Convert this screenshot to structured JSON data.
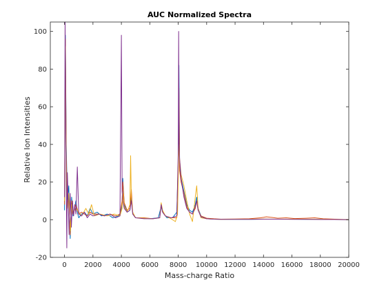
{
  "chart_data": {
    "type": "line",
    "title": "AUC Normalized Spectra",
    "xlabel": "Mass-charge Ratio",
    "ylabel": "Relative Ion Intensities",
    "xlim": [
      -1000,
      20000
    ],
    "ylim": [
      -20,
      105
    ],
    "xticks": [
      0,
      2000,
      4000,
      6000,
      8000,
      10000,
      12000,
      14000,
      16000,
      18000,
      20000
    ],
    "yticks": [
      -20,
      0,
      20,
      40,
      60,
      80,
      100
    ],
    "grid": false,
    "legend": "none",
    "series": [
      {
        "color": "#0072BD",
        "x": [
          0,
          60,
          120,
          200,
          300,
          400,
          500,
          600,
          800,
          900,
          1000,
          1200,
          1400,
          1600,
          1800,
          2000,
          2300,
          2600,
          3000,
          3400,
          3800,
          3950,
          4050,
          4100,
          4200,
          4400,
          4600,
          4700,
          4800,
          5000,
          5400,
          6000,
          6600,
          6800,
          6900,
          7000,
          7200,
          7600,
          7900,
          8000,
          8050,
          8100,
          8200,
          8400,
          8600,
          8800,
          9000,
          9200,
          9300,
          9400,
          9600,
          10000,
          10500,
          11000,
          12000,
          13000,
          14000,
          15000,
          16000,
          17000,
          18000,
          19000,
          20000
        ],
        "y": [
          5,
          98,
          40,
          10,
          18,
          -10,
          12,
          2,
          10,
          4,
          1,
          3,
          4,
          2,
          6,
          3,
          4,
          2,
          3,
          1,
          2,
          4,
          8,
          22,
          8,
          4,
          5,
          12,
          3,
          1,
          1,
          0.5,
          1,
          7,
          4,
          3,
          1,
          1,
          4,
          30,
          82,
          28,
          22,
          15,
          8,
          5,
          4,
          8,
          12,
          6,
          2,
          0.5,
          0.3,
          0.2,
          0.2,
          0.2,
          0.3,
          0.3,
          0.3,
          0.2,
          0.2,
          0.1,
          0
        ]
      },
      {
        "color": "#D95319",
        "x": [
          0,
          60,
          120,
          200,
          300,
          400,
          500,
          600,
          800,
          1000,
          1200,
          1400,
          1600,
          1800,
          2000,
          2400,
          2800,
          3200,
          3600,
          3900,
          4050,
          4100,
          4200,
          4400,
          4600,
          4700,
          4800,
          5000,
          5600,
          6200,
          6700,
          6800,
          6900,
          7100,
          7500,
          7900,
          8000,
          8050,
          8100,
          8200,
          8400,
          8600,
          8800,
          9000,
          9200,
          9300,
          9400,
          9600,
          10000,
          10500,
          11000,
          12000,
          13000,
          13800,
          14200,
          14600,
          15000,
          15600,
          16200,
          17000,
          17600,
          18200,
          19000,
          20000
        ],
        "y": [
          8,
          96,
          35,
          8,
          12,
          -8,
          10,
          3,
          8,
          3,
          4,
          3,
          2,
          4,
          3,
          3,
          2,
          3,
          2,
          3,
          10,
          20,
          9,
          5,
          6,
          16,
          3,
          1,
          1,
          0.5,
          1,
          8,
          4,
          2,
          1,
          1,
          25,
          70,
          26,
          20,
          14,
          7,
          4,
          3,
          6,
          10,
          5,
          2,
          0.8,
          0.5,
          0.3,
          0.4,
          0.5,
          1,
          1.5,
          1.2,
          0.8,
          1,
          0.6,
          0.8,
          1,
          0.5,
          0.3,
          0
        ]
      },
      {
        "color": "#EDB120",
        "x": [
          0,
          60,
          120,
          200,
          300,
          400,
          500,
          600,
          800,
          1000,
          1200,
          1500,
          1700,
          1900,
          2100,
          2500,
          3000,
          3500,
          3900,
          4050,
          4100,
          4200,
          4400,
          4600,
          4650,
          4700,
          4800,
          5000,
          5600,
          6200,
          6700,
          6800,
          6900,
          7100,
          7500,
          7800,
          7950,
          8050,
          8100,
          8200,
          8400,
          8600,
          8800,
          9000,
          9200,
          9300,
          9400,
          9600,
          10000,
          10500,
          11000,
          12000,
          13000,
          14000,
          15000,
          16000,
          17000,
          18000,
          19000,
          20000
        ],
        "y": [
          10,
          92,
          30,
          6,
          14,
          -6,
          8,
          4,
          6,
          4,
          2,
          6,
          3,
          8,
          2,
          3,
          2,
          3,
          2,
          6,
          14,
          7,
          4,
          8,
          34,
          12,
          4,
          1,
          0.8,
          0.5,
          1,
          9,
          5,
          2,
          0.5,
          -1,
          3,
          40,
          32,
          24,
          18,
          10,
          3,
          -1,
          12,
          18,
          6,
          1,
          0.5,
          0.3,
          0.2,
          0.3,
          0.3,
          0.4,
          0.3,
          0.3,
          0.3,
          0.2,
          0.1,
          0
        ]
      },
      {
        "color": "#7E2F8E",
        "x": [
          0,
          40,
          80,
          120,
          160,
          200,
          260,
          320,
          400,
          480,
          560,
          640,
          720,
          800,
          900,
          1000,
          1200,
          1400,
          1600,
          1800,
          2000,
          2400,
          2800,
          3200,
          3600,
          3900,
          4000,
          4050,
          4100,
          4200,
          4400,
          4600,
          4700,
          4800,
          5000,
          5600,
          6200,
          6700,
          6800,
          6900,
          7100,
          7500,
          7900,
          8000,
          8030,
          8060,
          8100,
          8200,
          8400,
          8600,
          8800,
          9000,
          9200,
          9300,
          9400,
          9600,
          10000,
          10500,
          11000,
          12000,
          13000,
          14000,
          15000,
          16000,
          17000,
          18000,
          19000,
          20000
        ],
        "y": [
          12,
          105,
          60,
          20,
          -15,
          25,
          10,
          -8,
          14,
          -4,
          10,
          2,
          8,
          3,
          28,
          3,
          2,
          4,
          1,
          3,
          2,
          3,
          2,
          3,
          1,
          2,
          98,
          15,
          10,
          6,
          4,
          5,
          10,
          3,
          1,
          0.5,
          0.5,
          1,
          8,
          4,
          2,
          1,
          2,
          35,
          100,
          40,
          32,
          22,
          12,
          6,
          4,
          3,
          7,
          10,
          5,
          1.5,
          0.5,
          0.3,
          0.2,
          0.2,
          0.2,
          0.3,
          0.3,
          0.2,
          0.2,
          0.1,
          0.1,
          0
        ]
      }
    ]
  }
}
